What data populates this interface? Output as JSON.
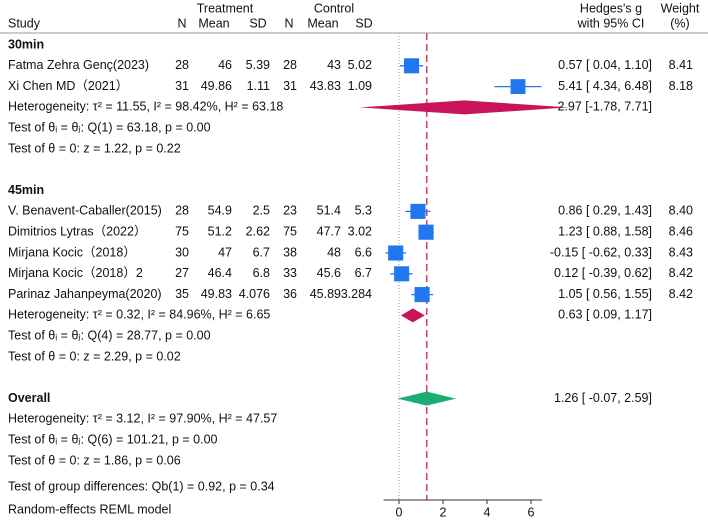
{
  "chart_data": {
    "type": "forest",
    "headers": {
      "treatment": "Treatment",
      "control": "Control",
      "study": "Study",
      "n1": "N",
      "mean1": "Mean",
      "sd1": "SD",
      "n2": "N",
      "mean2": "Mean",
      "sd2": "SD",
      "effect": "Hedges's g",
      "ci": "with 95% CI",
      "weight": "Weight",
      "weight_unit": "(%)"
    },
    "groups": [
      {
        "label": "30min",
        "studies": [
          {
            "study": "Fatma Zehra Genç(2023)",
            "n1": 28,
            "mean1": 46,
            "sd1": 5.39,
            "n2": 28,
            "mean2": 43,
            "sd2": 5.02,
            "es": 0.57,
            "lo": 0.04,
            "hi": 1.1,
            "ci_label": "0.57 [ 0.04, 1.10]",
            "weight": 8.41,
            "weight_label": "8.41"
          },
          {
            "study": "Xi Chen MD（2021）",
            "n1": 31,
            "mean1": 49.86,
            "sd1": 1.11,
            "n2": 31,
            "mean2": 43.83,
            "sd2": 1.09,
            "es": 5.41,
            "lo": 4.34,
            "hi": 6.48,
            "ci_label": "5.41 [ 4.34, 6.48]",
            "weight": 8.18,
            "weight_label": "8.18"
          }
        ],
        "summary": {
          "es": 2.97,
          "lo": -1.78,
          "hi": 7.71,
          "ci_label": "2.97 [-1.78, 7.71]"
        },
        "heterogeneity": "Heterogeneity: τ² = 11.55, I² = 98.42%, H² = 63.18",
        "test_q": "Test of θᵢ = θⱼ: Q(1) = 63.18, p = 0.00",
        "test_z": "Test of θ = 0: z = 1.22, p = 0.22"
      },
      {
        "label": "45min",
        "studies": [
          {
            "study": "V. Benavent-Caballer(2015)",
            "n1": 28,
            "mean1": 54.9,
            "sd1": 2.5,
            "n2": 23,
            "mean2": 51.4,
            "sd2": 5.3,
            "es": 0.86,
            "lo": 0.29,
            "hi": 1.43,
            "ci_label": "0.86 [ 0.29, 1.43]",
            "weight": 8.4,
            "weight_label": "8.40"
          },
          {
            "study": "Dimitrios Lytras（2022）",
            "n1": 75,
            "mean1": 51.2,
            "sd1": 2.62,
            "n2": 75,
            "mean2": 47.7,
            "sd2": 3.02,
            "es": 1.23,
            "lo": 0.88,
            "hi": 1.58,
            "ci_label": "1.23 [ 0.88, 1.58]",
            "weight": 8.46,
            "weight_label": "8.46"
          },
          {
            "study": "Mirjana Kocic（2018）",
            "n1": 30,
            "mean1": 47,
            "sd1": 6.7,
            "n2": 38,
            "mean2": 48,
            "sd2": 6.6,
            "es": -0.15,
            "lo": -0.62,
            "hi": 0.33,
            "ci_label": "-0.15 [ -0.62, 0.33]",
            "weight": 8.43,
            "weight_label": "8.43"
          },
          {
            "study": "Mirjana Kocic（2018）2",
            "n1": 27,
            "mean1": 46.4,
            "sd1": 6.8,
            "n2": 33,
            "mean2": 45.6,
            "sd2": 6.7,
            "es": 0.12,
            "lo": -0.39,
            "hi": 0.62,
            "ci_label": "0.12 [ -0.39, 0.62]",
            "weight": 8.42,
            "weight_label": "8.42"
          },
          {
            "study": "Parinaz Jahanpeyma(2020)",
            "n1": 35,
            "mean1": 49.83,
            "sd1": 4.076,
            "n2": 36,
            "mean2": 45.89,
            "sd2": 3.284,
            "es": 1.05,
            "lo": 0.56,
            "hi": 1.55,
            "ci_label": "1.05 [ 0.56, 1.55]",
            "weight": 8.42,
            "weight_label": "8.42"
          }
        ],
        "summary": {
          "es": 0.63,
          "lo": 0.09,
          "hi": 1.17,
          "ci_label": "0.63 [ 0.09, 1.17]"
        },
        "heterogeneity": "Heterogeneity: τ² = 0.32, I² = 84.96%, H² = 6.65",
        "test_q": "Test of θᵢ = θⱼ: Q(4) = 28.77, p = 0.00",
        "test_z": "Test of θ = 0: z = 2.29, p = 0.02"
      }
    ],
    "overall": {
      "label": "Overall",
      "es": 1.26,
      "lo": -0.07,
      "hi": 2.59,
      "ci_label": "1.26 [ -0.07, 2.59]",
      "heterogeneity": "Heterogeneity: τ² = 3.12, I² = 97.90%, H² = 47.57",
      "test_q": "Test of θᵢ = θⱼ: Q(6) = 101.21, p = 0.00",
      "test_z": "Test of θ = 0: z = 1.86, p = 0.06"
    },
    "group_test": "Test of group differences: Qb(1) = 0.92, p = 0.34",
    "model": "Random-effects REML model",
    "xlim": [
      -0.7,
      6.5
    ],
    "xticks": [
      0,
      2,
      4,
      6
    ],
    "colors": {
      "study": "#1f78f0",
      "subgroup": "#c8155a",
      "overall": "#1aae74",
      "overall_line": "#d9386a",
      "null_line": "#999999"
    }
  }
}
